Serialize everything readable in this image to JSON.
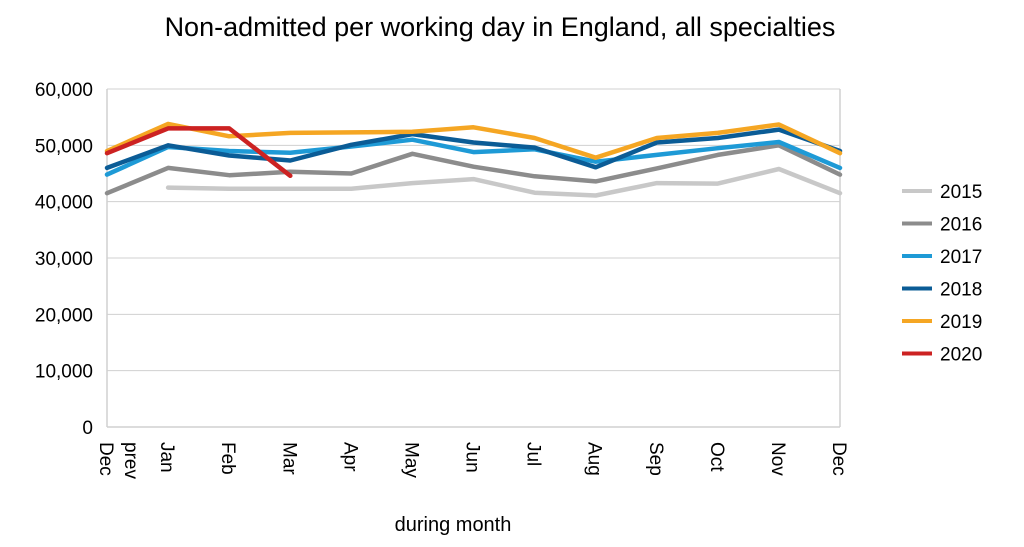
{
  "chart_data": {
    "type": "line",
    "title": "Non-admitted per working day in England, all specialties",
    "xlabel": "during month",
    "ylabel": "",
    "categories": [
      "Dec prev",
      "Jan",
      "Feb",
      "Mar",
      "Apr",
      "May",
      "Jun",
      "Jul",
      "Aug",
      "Sep",
      "Oct",
      "Nov",
      "Dec"
    ],
    "ylim": [
      0,
      60000
    ],
    "yticks": [
      "0",
      "10,000",
      "20,000",
      "30,000",
      "40,000",
      "50,000",
      "60,000"
    ],
    "grid": true,
    "legend_position": "right",
    "series": [
      {
        "name": "2015",
        "color": "#c8c8c8",
        "values": [
          null,
          42500,
          42300,
          42300,
          42300,
          43300,
          44000,
          41600,
          41100,
          43300,
          43200,
          45800,
          41500
        ]
      },
      {
        "name": "2016",
        "color": "#8c8c8c",
        "values": [
          41500,
          46000,
          44700,
          45300,
          45000,
          48500,
          46200,
          44500,
          43600,
          45900,
          48300,
          50000,
          44800
        ]
      },
      {
        "name": "2017",
        "color": "#1e9ad6",
        "values": [
          44800,
          49700,
          49000,
          48700,
          49800,
          51000,
          48800,
          49300,
          47100,
          48300,
          49500,
          50600,
          46000
        ]
      },
      {
        "name": "2018",
        "color": "#0b5c96",
        "values": [
          46000,
          50000,
          48200,
          47300,
          50100,
          52000,
          50500,
          49600,
          46100,
          50500,
          51300,
          52800,
          49000
        ]
      },
      {
        "name": "2019",
        "color": "#f5a623",
        "values": [
          49000,
          53800,
          51600,
          52200,
          52300,
          52400,
          53200,
          51300,
          47800,
          51300,
          52200,
          53700,
          48600
        ]
      },
      {
        "name": "2020",
        "color": "#cc2222",
        "values": [
          48600,
          53000,
          53000,
          44600,
          null,
          null,
          null,
          null,
          null,
          null,
          null,
          null,
          null
        ]
      }
    ]
  }
}
